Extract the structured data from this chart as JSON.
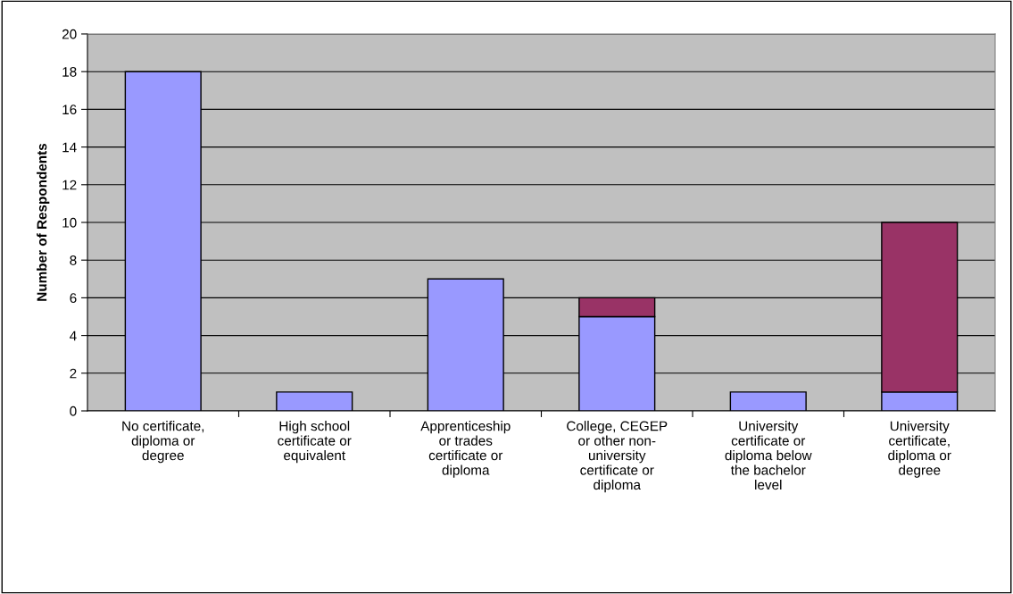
{
  "chart_data": {
    "type": "bar",
    "stacked": true,
    "ylabel": "Number of Respondents",
    "categories": [
      "No certificate, diploma or degree",
      "High school certificate or equivalent",
      "Apprenticeship or trades certificate or diploma",
      "College, CEGEP or other non-university certificate or diploma",
      "University certificate or diploma below the bachelor level",
      "University certificate, diploma or degree"
    ],
    "series": [
      {
        "color": "#9999ff",
        "values": [
          18,
          1,
          7,
          5,
          1,
          1
        ]
      },
      {
        "color": "#993366",
        "values": [
          null,
          null,
          null,
          1,
          null,
          9
        ]
      }
    ],
    "ylim": [
      0,
      20
    ],
    "yticks": [
      0,
      2,
      4,
      6,
      8,
      10,
      12,
      14,
      16,
      18,
      20
    ],
    "grid": "y",
    "legend": false
  }
}
